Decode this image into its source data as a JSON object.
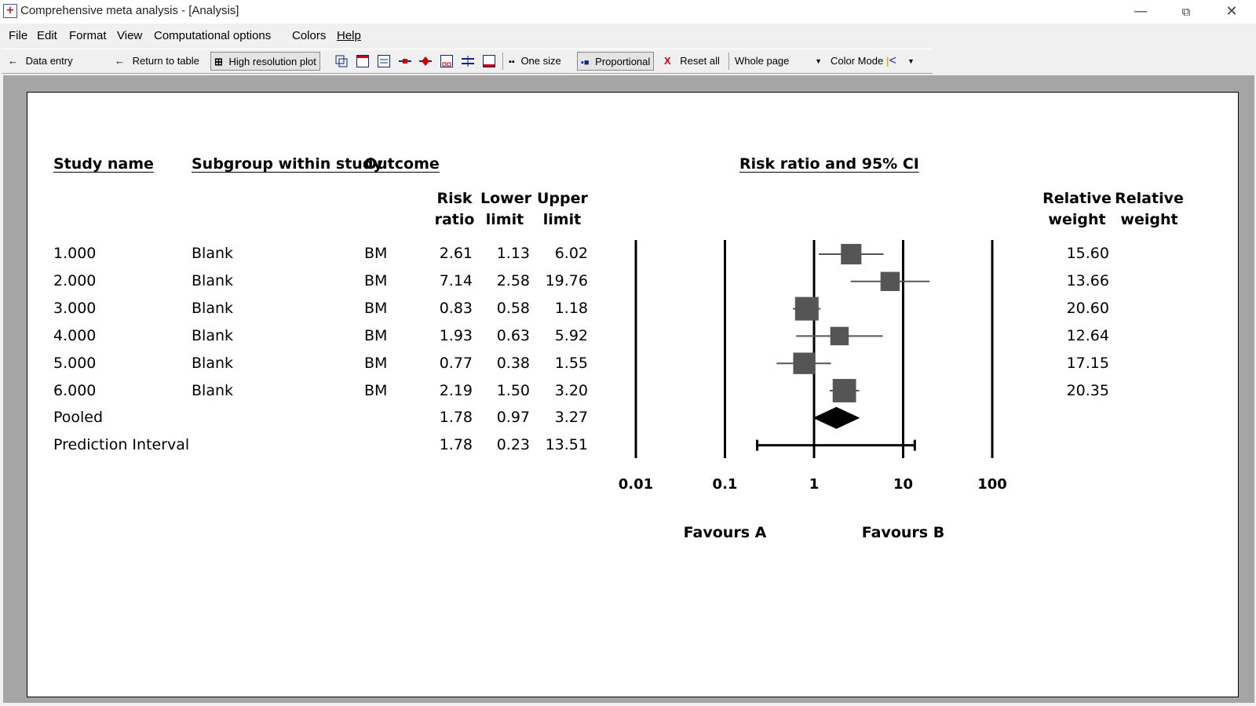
{
  "window": {
    "title": "Comprehensive meta analysis - [Analysis]",
    "minimize": "—",
    "restore": "⧉",
    "close": "✕"
  },
  "menu": [
    "File",
    "Edit",
    "Format",
    "View",
    "Computational options",
    "Colors",
    "Help"
  ],
  "toolbar": {
    "data_entry": "Data entry",
    "return_to_table": "Return to table",
    "high_res_plot": "High resolution plot",
    "one_size": "One size",
    "proportional": "Proportional",
    "reset_all": "Reset all",
    "whole_page": "Whole page",
    "color_mode": "Color Mode",
    "arrow_left": "←",
    "reset_x": "X"
  },
  "table": {
    "headers": {
      "study_name": "Study name",
      "subgroup": "Subgroup within study",
      "outcome": "Outcome",
      "plot_title": "Risk ratio and 95% CI",
      "risk_ratio_1": "Risk",
      "risk_ratio_2": "ratio",
      "lower_1": "Lower",
      "lower_2": "limit",
      "upper_1": "Upper",
      "upper_2": "limit",
      "relw_1": "Relative",
      "relw_2": "weight",
      "relw2_1": "Relative",
      "relw2_2": "weight"
    },
    "rows": [
      {
        "study": "1.000",
        "subgroup": "Blank",
        "outcome": "BM",
        "rr": "2.61",
        "lower": "1.13",
        "upper": "6.02",
        "weight": "15.60"
      },
      {
        "study": "2.000",
        "subgroup": "Blank",
        "outcome": "BM",
        "rr": "7.14",
        "lower": "2.58",
        "upper": "19.76",
        "weight": "13.66"
      },
      {
        "study": "3.000",
        "subgroup": "Blank",
        "outcome": "BM",
        "rr": "0.83",
        "lower": "0.58",
        "upper": "1.18",
        "weight": "20.60"
      },
      {
        "study": "4.000",
        "subgroup": "Blank",
        "outcome": "BM",
        "rr": "1.93",
        "lower": "0.63",
        "upper": "5.92",
        "weight": "12.64"
      },
      {
        "study": "5.000",
        "subgroup": "Blank",
        "outcome": "BM",
        "rr": "0.77",
        "lower": "0.38",
        "upper": "1.55",
        "weight": "17.15"
      },
      {
        "study": "6.000",
        "subgroup": "Blank",
        "outcome": "BM",
        "rr": "2.19",
        "lower": "1.50",
        "upper": "3.20",
        "weight": "20.35"
      },
      {
        "study": "Pooled",
        "subgroup": "",
        "outcome": "",
        "rr": "1.78",
        "lower": "0.97",
        "upper": "3.27",
        "weight": ""
      },
      {
        "study": "Prediction Interval",
        "subgroup": "",
        "outcome": "",
        "rr": "1.78",
        "lower": "0.23",
        "upper": "13.51",
        "weight": ""
      }
    ]
  },
  "chart_data": {
    "type": "scatter",
    "title": "Risk ratio and 95% CI",
    "x_scale": "log",
    "xlim": [
      0.01,
      100
    ],
    "x_ticks": [
      "0.01",
      "0.1",
      "1",
      "10",
      "100"
    ],
    "favours_left": "Favours A",
    "favours_right": "Favours B",
    "studies": [
      {
        "name": "1.000",
        "rr": 2.61,
        "lower": 1.13,
        "upper": 6.02,
        "weight": 15.6
      },
      {
        "name": "2.000",
        "rr": 7.14,
        "lower": 2.58,
        "upper": 19.76,
        "weight": 13.66
      },
      {
        "name": "3.000",
        "rr": 0.83,
        "lower": 0.58,
        "upper": 1.18,
        "weight": 20.6
      },
      {
        "name": "4.000",
        "rr": 1.93,
        "lower": 0.63,
        "upper": 5.92,
        "weight": 12.64
      },
      {
        "name": "5.000",
        "rr": 0.77,
        "lower": 0.38,
        "upper": 1.55,
        "weight": 17.15
      },
      {
        "name": "6.000",
        "rr": 2.19,
        "lower": 1.5,
        "upper": 3.2,
        "weight": 20.35
      }
    ],
    "pooled": {
      "rr": 1.78,
      "lower": 0.97,
      "upper": 3.27
    },
    "prediction_interval": {
      "rr": 1.78,
      "lower": 0.23,
      "upper": 13.51
    },
    "colors": {
      "marker": "#555555",
      "diamond": "#000000",
      "axis": "#000000"
    }
  }
}
